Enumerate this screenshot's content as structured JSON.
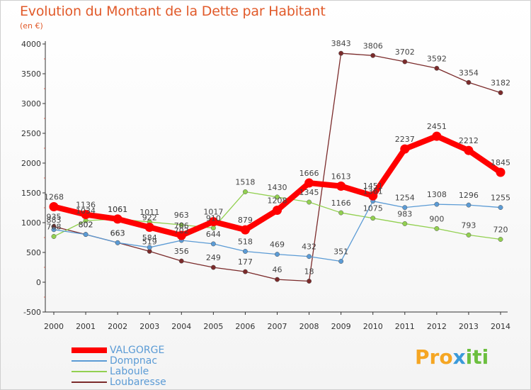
{
  "chart_data": {
    "type": "line",
    "title": "Evolution du Montant de la Dette par Habitant",
    "subtitle": "(en €)",
    "x": [
      "2000",
      "2001",
      "2002",
      "2003",
      "2004",
      "2005",
      "2006",
      "2007",
      "2008",
      "2009",
      "2010",
      "2011",
      "2012",
      "2013",
      "2014"
    ],
    "ylim": [
      -500,
      4000
    ],
    "yticks": [
      -500,
      0,
      500,
      1000,
      1500,
      2000,
      2500,
      3000,
      3500,
      4000
    ],
    "grid": false,
    "legend_position": "bottom-left",
    "series": [
      {
        "name": "VALGORGE",
        "color": "#ff0000",
        "values": [
          1268,
          1136,
          1061,
          922,
          786,
          1017,
          879,
          1208,
          1666,
          1613,
          1451,
          2237,
          2451,
          2212,
          1845
        ]
      },
      {
        "name": "Dompnac",
        "color": "#5b9bd5",
        "values": [
          883,
          802,
          663,
          584,
          702,
          644,
          518,
          469,
          432,
          351,
          1361,
          1254,
          1308,
          1296,
          1255
        ]
      },
      {
        "name": "Laboule",
        "color": "#92d050",
        "values": [
          768,
          1034,
          1061,
          1011,
          963,
          910,
          1518,
          1430,
          1345,
          1166,
          1075,
          983,
          900,
          793,
          720
        ]
      },
      {
        "name": "Loubaresse",
        "color": "#7b2b2b",
        "values": [
          935,
          802,
          663,
          519,
          356,
          249,
          177,
          46,
          18,
          3843,
          3806,
          3702,
          3592,
          3354,
          3182
        ]
      }
    ]
  },
  "logo": {
    "text_p": "Pro",
    "text_x": "x",
    "text_i": "iti"
  }
}
